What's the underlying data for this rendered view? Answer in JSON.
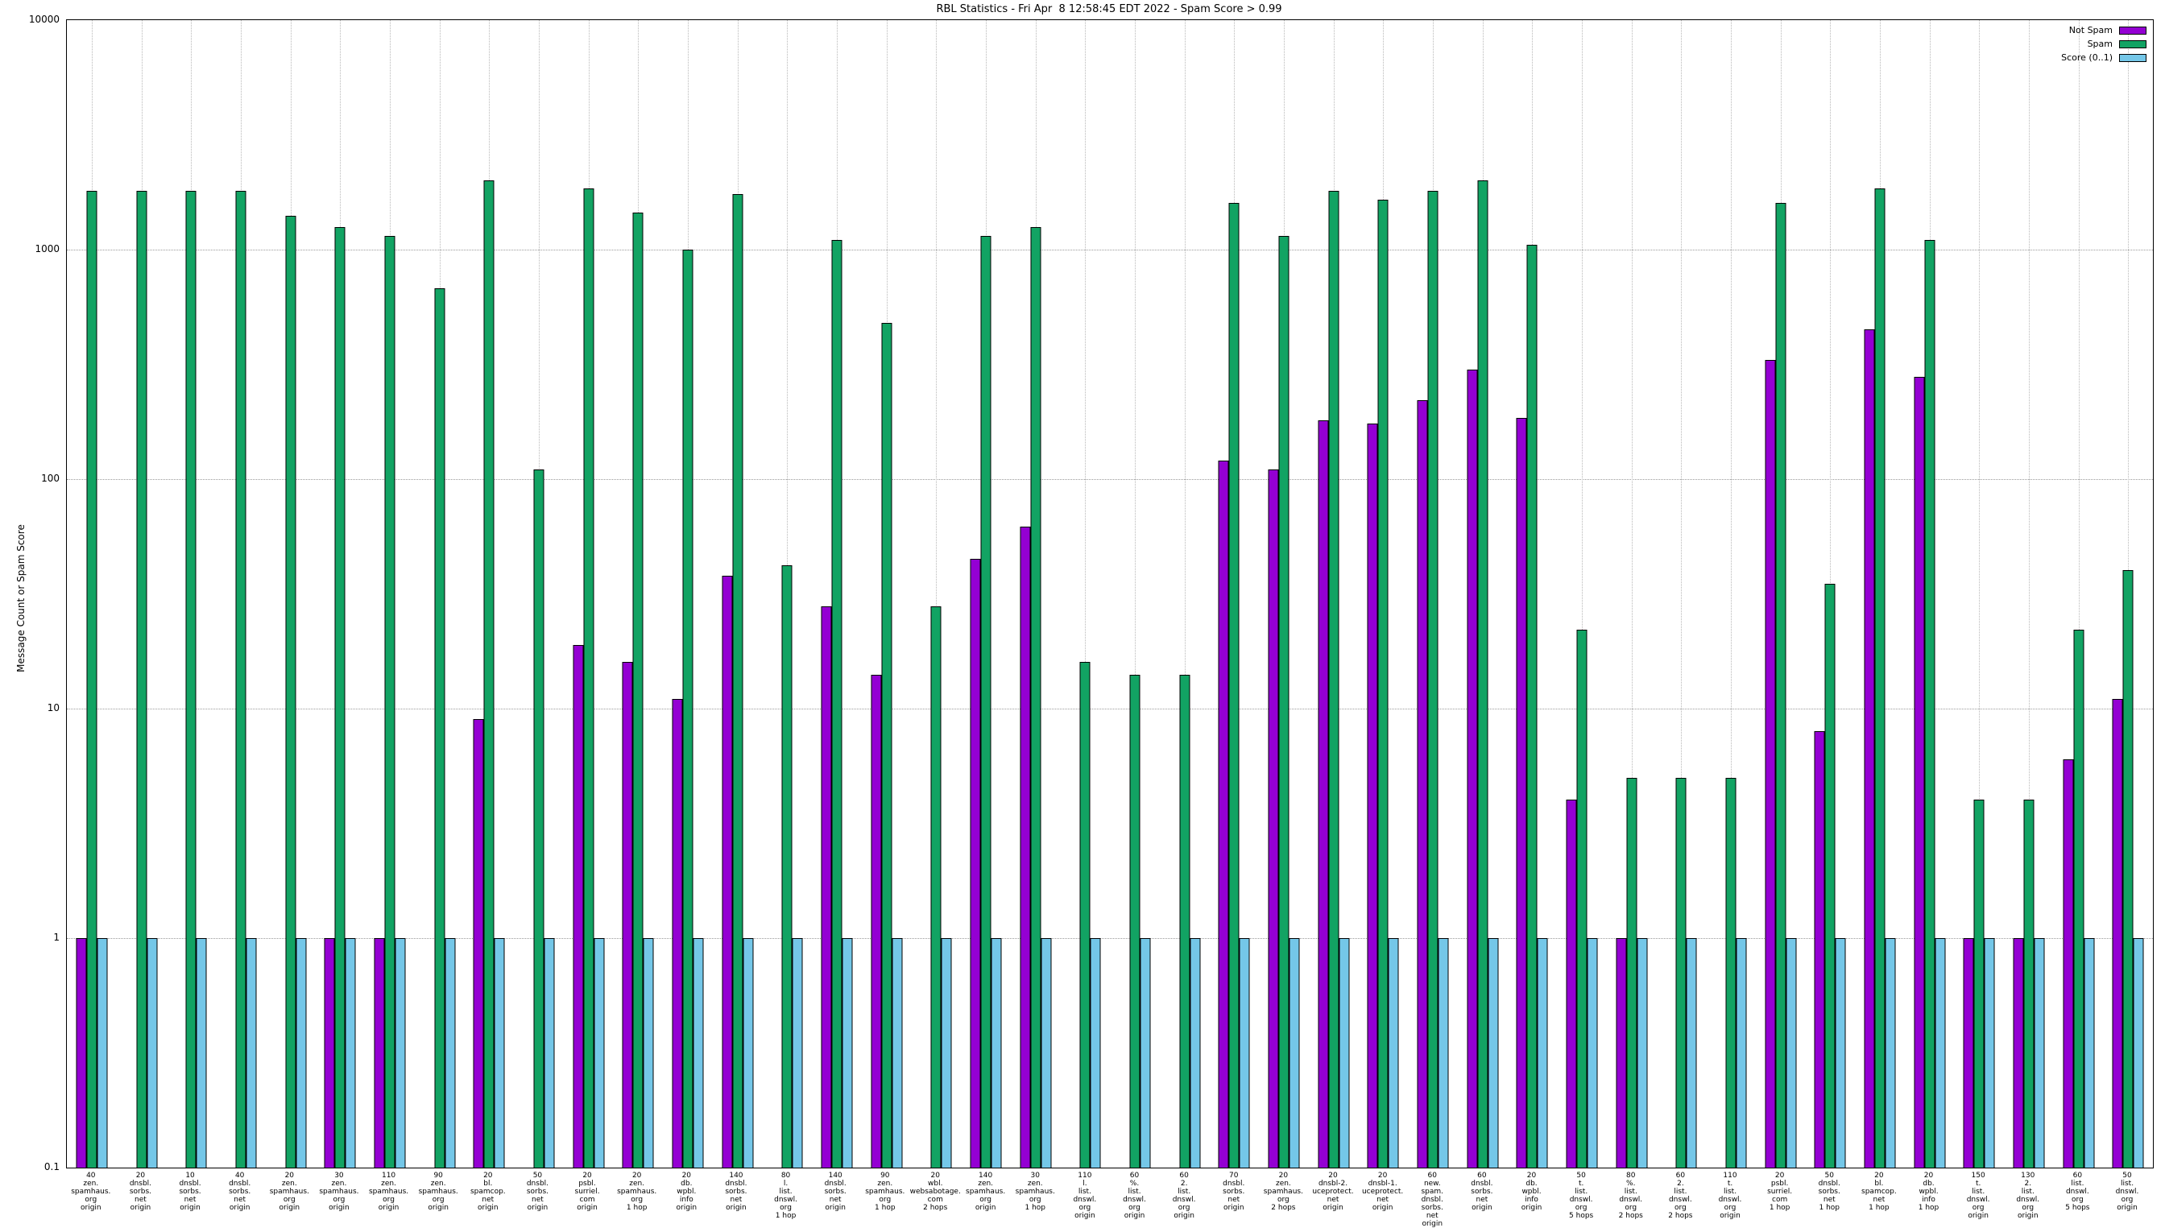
{
  "chart_data": {
    "type": "bar",
    "title": "RBL Statistics - Fri Apr  8 12:58:45 EDT 2022 - Spam Score > 0.99",
    "ylabel": "Message Count or Spam Score",
    "y_scale": "log",
    "ylim": [
      0.1,
      10000
    ],
    "y_ticks": [
      0.1,
      1,
      10,
      100,
      1000,
      10000
    ],
    "y_tick_labels": [
      "0.1",
      "1",
      "10",
      "100",
      "1000",
      "10000"
    ],
    "grid": true,
    "legend_position": "top-right",
    "colors": {
      "not_spam": "#9400d3",
      "spam": "#12a363",
      "score": "#74c7e8",
      "grid": "#b0b0b0",
      "border": "#000000"
    },
    "legend": [
      {
        "label": "Not Spam",
        "series": "not_spam"
      },
      {
        "label": "Spam",
        "series": "spam"
      },
      {
        "label": "Score (0..1)",
        "series": "score"
      }
    ],
    "series": [
      {
        "name": "Not Spam",
        "key": "not_spam",
        "values": [
          1,
          null,
          null,
          null,
          null,
          1,
          1,
          null,
          9,
          null,
          19,
          16,
          11,
          38,
          null,
          28,
          14,
          null,
          45,
          62,
          null,
          null,
          null,
          120,
          110,
          180,
          175,
          220,
          300,
          185,
          4,
          1,
          null,
          null,
          330,
          8,
          450,
          280,
          1,
          1,
          6,
          11
        ]
      },
      {
        "name": "Spam",
        "key": "spam",
        "values": [
          1800,
          1800,
          1800,
          1800,
          1400,
          1250,
          1150,
          680,
          2000,
          110,
          1850,
          1450,
          1000,
          1750,
          42,
          1100,
          480,
          28,
          1150,
          1250,
          16,
          14,
          14,
          1600,
          1150,
          1800,
          1650,
          1800,
          2000,
          1050,
          22,
          5,
          5,
          5,
          1600,
          35,
          1850,
          1100,
          4,
          4,
          22,
          40
        ]
      },
      {
        "name": "Score (0..1)",
        "key": "score",
        "values": [
          1,
          1,
          1,
          1,
          1,
          1,
          1,
          1,
          1,
          1,
          1,
          1,
          1,
          1,
          1,
          1,
          1,
          1,
          1,
          1,
          1,
          1,
          1,
          1,
          1,
          1,
          1,
          1,
          1,
          1,
          1,
          1,
          1,
          1,
          1,
          1,
          1,
          1,
          1,
          1,
          1,
          1
        ]
      }
    ],
    "categories": [
      [
        "40",
        "zen.",
        "spamhaus.",
        "org",
        "origin"
      ],
      [
        "20",
        "dnsbl.",
        "sorbs.",
        "net",
        "origin"
      ],
      [
        "10",
        "dnsbl.",
        "sorbs.",
        "net",
        "origin"
      ],
      [
        "40",
        "dnsbl.",
        "sorbs.",
        "net",
        "origin"
      ],
      [
        "20",
        "zen.",
        "spamhaus.",
        "org",
        "origin"
      ],
      [
        "30",
        "zen.",
        "spamhaus.",
        "org",
        "origin"
      ],
      [
        "110",
        "zen.",
        "spamhaus.",
        "org",
        "origin"
      ],
      [
        "90",
        "zen.",
        "spamhaus.",
        "org",
        "origin"
      ],
      [
        "20",
        "bl.",
        "spamcop.",
        "net",
        "origin"
      ],
      [
        "50",
        "dnsbl.",
        "sorbs.",
        "net",
        "origin"
      ],
      [
        "20",
        "psbl.",
        "surriel.",
        "com",
        "origin"
      ],
      [
        "20",
        "zen.",
        "spamhaus.",
        "org",
        "1 hop"
      ],
      [
        "20",
        "db.",
        "wpbl.",
        "info",
        "origin"
      ],
      [
        "140",
        "dnsbl.",
        "sorbs.",
        "net",
        "origin"
      ],
      [
        "80",
        "l.",
        "list.",
        "dnswl.",
        "org",
        "1 hop"
      ],
      [
        "140",
        "dnsbl.",
        "sorbs.",
        "net",
        "origin"
      ],
      [
        "90",
        "zen.",
        "spamhaus.",
        "org",
        "1 hop"
      ],
      [
        "20",
        "wbl.",
        "websabotage.",
        "com",
        "2 hops"
      ],
      [
        "140",
        "zen.",
        "spamhaus.",
        "org",
        "origin"
      ],
      [
        "30",
        "zen.",
        "spamhaus.",
        "org",
        "1 hop"
      ],
      [
        "110",
        "l.",
        "list.",
        "dnswl.",
        "org",
        "origin"
      ],
      [
        "60",
        "%.",
        "list.",
        "dnswl.",
        "org",
        "origin"
      ],
      [
        "60",
        "2.",
        "list.",
        "dnswl.",
        "org",
        "origin"
      ],
      [
        "70",
        "dnsbl.",
        "sorbs.",
        "net",
        "origin"
      ],
      [
        "20",
        "zen.",
        "spamhaus.",
        "org",
        "2 hops"
      ],
      [
        "20",
        "dnsbl-2.",
        "uceprotect.",
        "net",
        "origin"
      ],
      [
        "20",
        "dnsbl-1.",
        "uceprotect.",
        "net",
        "origin"
      ],
      [
        "60",
        "new.",
        "spam.",
        "dnsbl.",
        "sorbs.",
        "net",
        "origin"
      ],
      [
        "60",
        "dnsbl.",
        "sorbs.",
        "net",
        "origin"
      ],
      [
        "20",
        "db.",
        "wpbl.",
        "info",
        "origin"
      ],
      [
        "50",
        "t.",
        "list.",
        "dnswl.",
        "org",
        "5 hops"
      ],
      [
        "80",
        "%.",
        "list.",
        "dnswl.",
        "org",
        "2 hops"
      ],
      [
        "60",
        "2.",
        "list.",
        "dnswl.",
        "org",
        "2 hops"
      ],
      [
        "110",
        "t.",
        "list.",
        "dnswl.",
        "org",
        "origin"
      ],
      [
        "20",
        "psbl.",
        "surriel.",
        "com",
        "1 hop"
      ],
      [
        "50",
        "dnsbl.",
        "sorbs.",
        "net",
        "1 hop"
      ],
      [
        "20",
        "bl.",
        "spamcop.",
        "net",
        "1 hop"
      ],
      [
        "20",
        "db.",
        "wpbl.",
        "info",
        "1 hop"
      ],
      [
        "150",
        "t.",
        "list.",
        "dnswl.",
        "org",
        "origin"
      ],
      [
        "130",
        "2.",
        "list.",
        "dnswl.",
        "org",
        "origin"
      ],
      [
        "60",
        "list.",
        "dnswl.",
        "org",
        "5 hops"
      ],
      [
        "50",
        "list.",
        "dnswl.",
        "org",
        "origin"
      ]
    ]
  }
}
